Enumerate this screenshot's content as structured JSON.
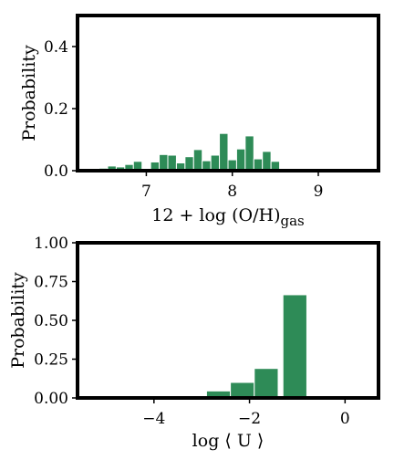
{
  "chart_data": [
    {
      "type": "bar",
      "xlabel": "12 + log (O/H)",
      "xlabel_subscript": "gas",
      "ylabel": "Probability",
      "xlim": [
        6.2,
        9.7
      ],
      "ylim": [
        0,
        0.5
      ],
      "xticks": [
        7,
        8,
        9
      ],
      "yticks": [
        0.0,
        0.2,
        0.4
      ],
      "ytick_labels": [
        "0.0",
        "0.2",
        "0.4"
      ],
      "bar_color": "#2e8b57",
      "bin_width": 0.1,
      "bins": [
        {
          "x": 6.5,
          "y": 0.008
        },
        {
          "x": 6.6,
          "y": 0.015
        },
        {
          "x": 6.7,
          "y": 0.012
        },
        {
          "x": 6.8,
          "y": 0.02
        },
        {
          "x": 6.9,
          "y": 0.03
        },
        {
          "x": 7.1,
          "y": 0.028
        },
        {
          "x": 7.2,
          "y": 0.052
        },
        {
          "x": 7.3,
          "y": 0.05
        },
        {
          "x": 7.4,
          "y": 0.025
        },
        {
          "x": 7.5,
          "y": 0.045
        },
        {
          "x": 7.6,
          "y": 0.068
        },
        {
          "x": 7.7,
          "y": 0.032
        },
        {
          "x": 7.8,
          "y": 0.05
        },
        {
          "x": 7.9,
          "y": 0.12
        },
        {
          "x": 8.0,
          "y": 0.035
        },
        {
          "x": 8.1,
          "y": 0.07
        },
        {
          "x": 8.2,
          "y": 0.112
        },
        {
          "x": 8.3,
          "y": 0.038
        },
        {
          "x": 8.4,
          "y": 0.062
        },
        {
          "x": 8.5,
          "y": 0.03
        }
      ]
    },
    {
      "type": "bar",
      "xlabel": "log ⟨ U ⟩",
      "ylabel": "Probability",
      "xlim": [
        -5.6,
        0.7
      ],
      "ylim": [
        0,
        1.0
      ],
      "xticks": [
        -4,
        -2,
        0
      ],
      "xtick_labels": [
        "−4",
        "−2",
        "0"
      ],
      "yticks": [
        0.0,
        0.25,
        0.5,
        0.75,
        1.0
      ],
      "ytick_labels": [
        "0.00",
        "0.25",
        "0.50",
        "0.75",
        "1.00"
      ],
      "bar_color": "#2e8b57",
      "bin_width": 0.5,
      "bins": [
        {
          "x": -2.65,
          "y": 0.045
        },
        {
          "x": -2.15,
          "y": 0.1
        },
        {
          "x": -1.65,
          "y": 0.19
        },
        {
          "x": -1.05,
          "y": 0.665
        }
      ]
    }
  ]
}
